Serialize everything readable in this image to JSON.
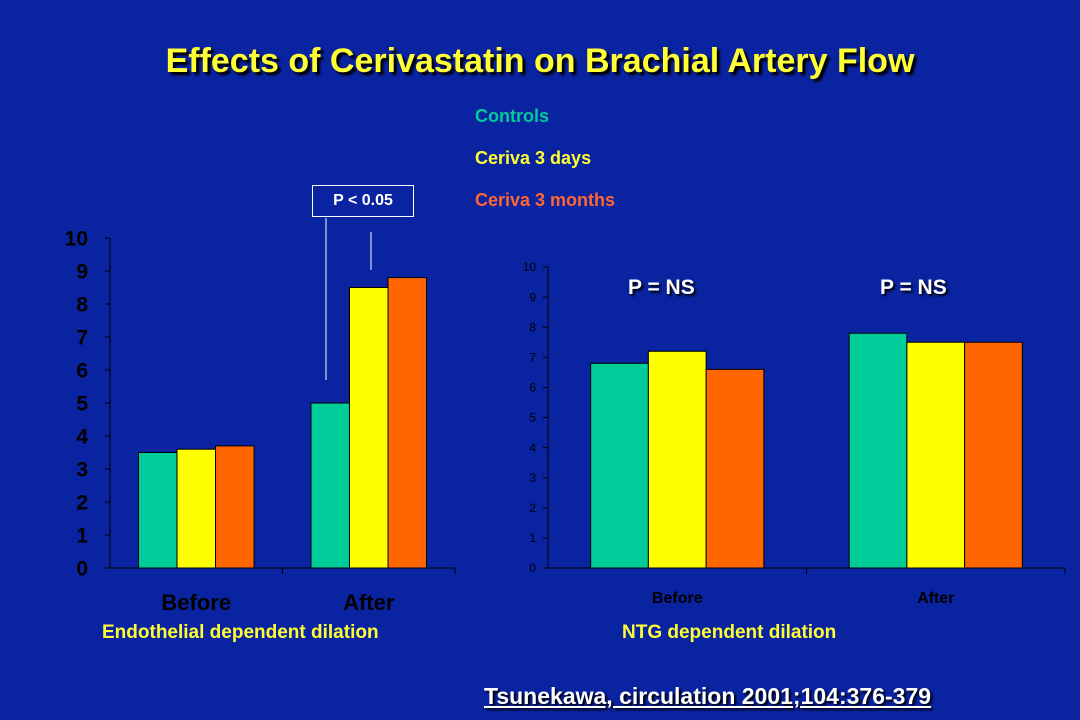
{
  "title": "Effects of Cerivastatin on Brachial Artery Flow",
  "citation": "Tsunekawa, circulation 2001;104:376-379",
  "colors": {
    "background": "#0a23a0",
    "controls": "#00cc99",
    "ceriva_3_days": "#ffff00",
    "ceriva_3_months": "#ff6600",
    "axis": "#000000",
    "title": "#ffff33"
  },
  "legend": [
    {
      "label": "Controls",
      "color": "#00cc99"
    },
    {
      "label": "Ceriva 3 days",
      "color": "#ffff33"
    },
    {
      "label": "Ceriva 3 months",
      "color": "#ff6633"
    }
  ],
  "annotations": {
    "p_value_left": "P < 0.05",
    "p_value_right_1": "P = NS",
    "p_value_right_2": "P = NS"
  },
  "captions": {
    "left": "Endothelial dependent dilation",
    "right": "NTG dependent dilation"
  },
  "chart_data": [
    {
      "type": "bar",
      "categories": [
        "Before",
        "After"
      ],
      "series": [
        {
          "name": "Controls",
          "values": [
            3.5,
            5.0
          ]
        },
        {
          "name": "Ceriva 3 days",
          "values": [
            3.6,
            8.5
          ]
        },
        {
          "name": "Ceriva 3 months",
          "values": [
            3.7,
            8.8
          ]
        }
      ],
      "ylim": [
        0,
        10
      ],
      "yticks": [
        "0",
        "1",
        "2",
        "3",
        "4",
        "5",
        "6",
        "7",
        "8",
        "9",
        "10"
      ],
      "xlabel": "Endothelial dependent dilation",
      "ylabel": "",
      "grid": false
    },
    {
      "type": "bar",
      "categories": [
        "Before",
        "After"
      ],
      "series": [
        {
          "name": "Controls",
          "values": [
            6.8,
            7.8
          ]
        },
        {
          "name": "Ceriva 3 days",
          "values": [
            7.2,
            7.5
          ]
        },
        {
          "name": "Ceriva 3 months",
          "values": [
            6.6,
            7.5
          ]
        }
      ],
      "ylim": [
        0,
        10
      ],
      "yticks": [
        "0",
        "1",
        "2",
        "3",
        "4",
        "5",
        "6",
        "7",
        "8",
        "9",
        "10"
      ],
      "xlabel": "NTG dependent dilation",
      "ylabel": "",
      "grid": false
    }
  ]
}
